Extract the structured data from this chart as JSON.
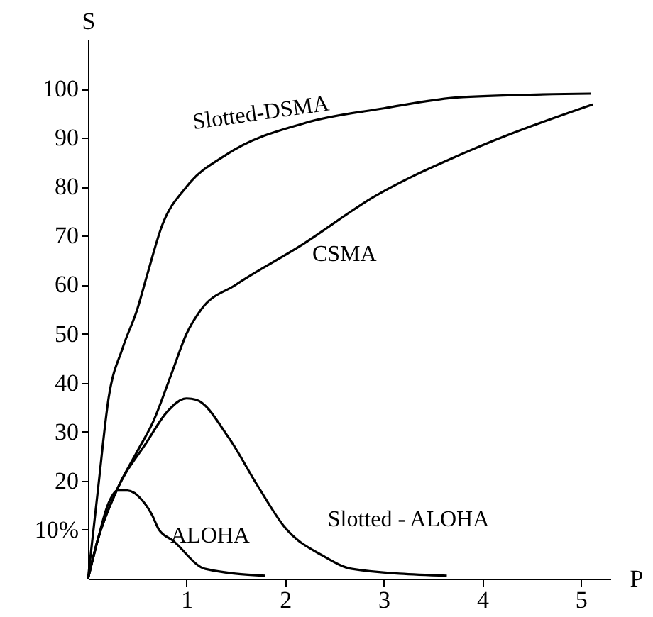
{
  "chart_data": {
    "type": "line",
    "xlabel": "P",
    "ylabel": "S",
    "xlim": [
      0,
      5.3
    ],
    "ylim": [
      0,
      110
    ],
    "xticks": [
      1,
      2,
      3,
      4,
      5
    ],
    "yticks": [
      {
        "value": 10,
        "label": "10%"
      },
      20,
      30,
      40,
      50,
      60,
      70,
      80,
      90,
      100
    ],
    "grid": false,
    "marker": "none",
    "line_style": "solid",
    "series": [
      {
        "name": "Slotted-DSMA",
        "color": "#000000",
        "x": [
          0,
          0.1,
          0.21,
          0.35,
          0.5,
          0.6,
          0.75,
          1,
          1.4,
          2.2,
          3,
          3.8,
          5.1
        ],
        "values": [
          0,
          18,
          37,
          47,
          55,
          62,
          72,
          80,
          86.5,
          93,
          96,
          98.3,
          99
        ]
      },
      {
        "name": "CSMA",
        "color": "#000000",
        "x": [
          0,
          0.1,
          0.29,
          0.5,
          0.66,
          0.85,
          1,
          1.15,
          1.5,
          2.16,
          2.88,
          3.83,
          5.12
        ],
        "values": [
          0,
          8,
          18,
          26,
          32,
          42,
          50,
          55,
          60,
          68,
          77.7,
          87,
          96.8
        ]
      },
      {
        "name": "Slotted - ALOHA",
        "color": "#000000",
        "x": [
          0,
          0.1,
          0.29,
          0.6,
          0.8,
          1,
          1.1,
          1.43,
          1.72,
          2,
          2.39,
          2.68,
          3.64
        ],
        "values": [
          0,
          8,
          18,
          28,
          34,
          36.8,
          36.5,
          28.7,
          19,
          10.4,
          4.6,
          2,
          0.6
        ]
      },
      {
        "name": "ALOHA",
        "color": "#000000",
        "x": [
          0,
          0.1,
          0.2,
          0.3,
          0.4,
          0.55,
          0.65,
          0.72,
          0.86,
          1.19,
          1.8
        ],
        "values": [
          0,
          8,
          15,
          18,
          18,
          16,
          13,
          10,
          7.8,
          2,
          0.6
        ]
      }
    ]
  }
}
